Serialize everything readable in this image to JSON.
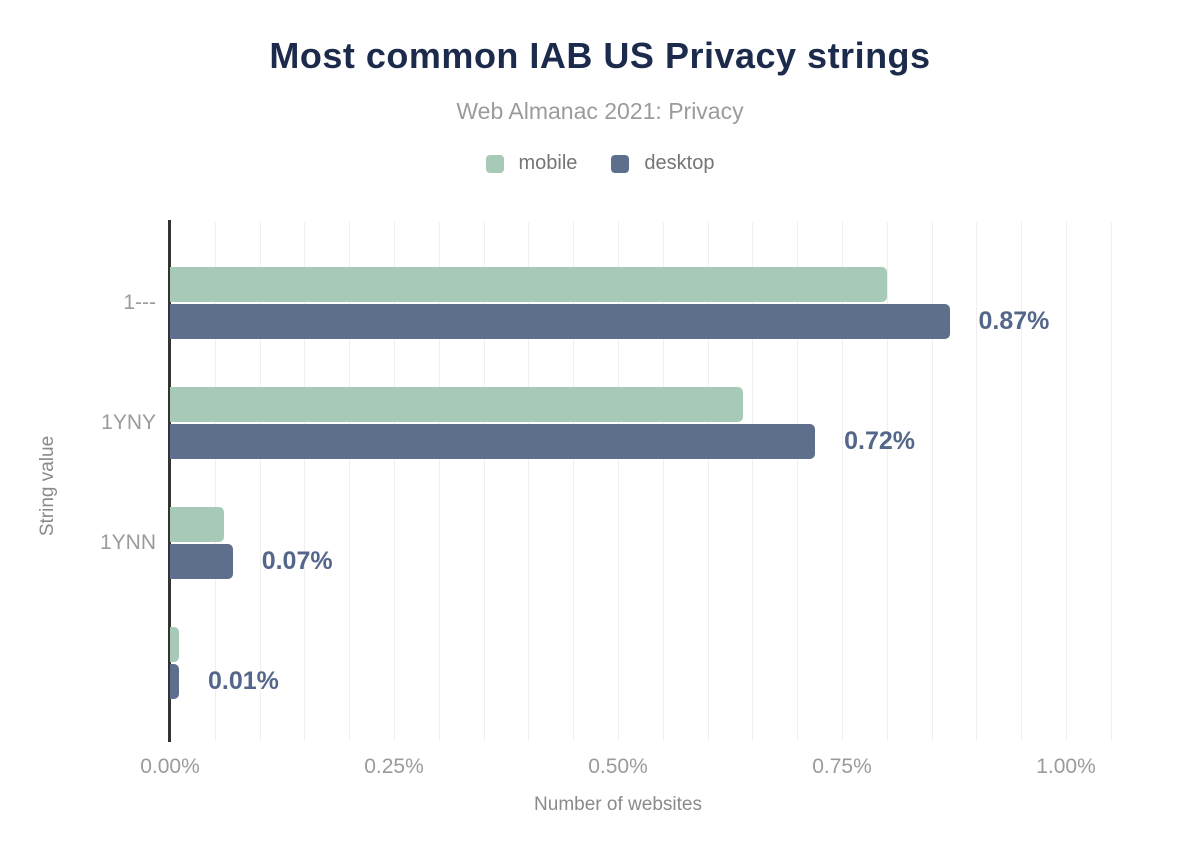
{
  "chart_data": {
    "type": "bar",
    "orientation": "horizontal",
    "title": "Most common IAB US Privacy strings",
    "subtitle": "Web Almanac 2021: Privacy",
    "xlabel": "Number of websites",
    "ylabel": "String value",
    "categories": [
      "1---",
      "1YNY",
      "1YNN",
      ""
    ],
    "series": [
      {
        "name": "mobile",
        "color": "#a7c9b8",
        "values": [
          0.8,
          0.64,
          0.06,
          0.01
        ]
      },
      {
        "name": "desktop",
        "color": "#5e6f8c",
        "values": [
          0.87,
          0.72,
          0.07,
          0.01
        ]
      }
    ],
    "data_labels": [
      "0.87%",
      "0.72%",
      "0.07%",
      "0.01%"
    ],
    "x_ticks": [
      {
        "label": "0.00%",
        "value": 0.0
      },
      {
        "label": "0.25%",
        "value": 0.25
      },
      {
        "label": "0.50%",
        "value": 0.5
      },
      {
        "label": "0.75%",
        "value": 0.75
      },
      {
        "label": "1.00%",
        "value": 1.0
      }
    ],
    "xlim": [
      0,
      1.0625
    ],
    "grid": {
      "minor_step": 0.05,
      "max": 1.05,
      "color": "#efefef"
    },
    "legend_position": "top",
    "colors": {
      "title": "#1c2b4c",
      "subtitle": "#9b9b9b",
      "legend_text": "#757575",
      "tick_label": "#9b9b9b",
      "axis_title": "#8a8a8a",
      "data_label": "#54678a",
      "axis_line": "#333333",
      "background": "#ffffff"
    }
  }
}
